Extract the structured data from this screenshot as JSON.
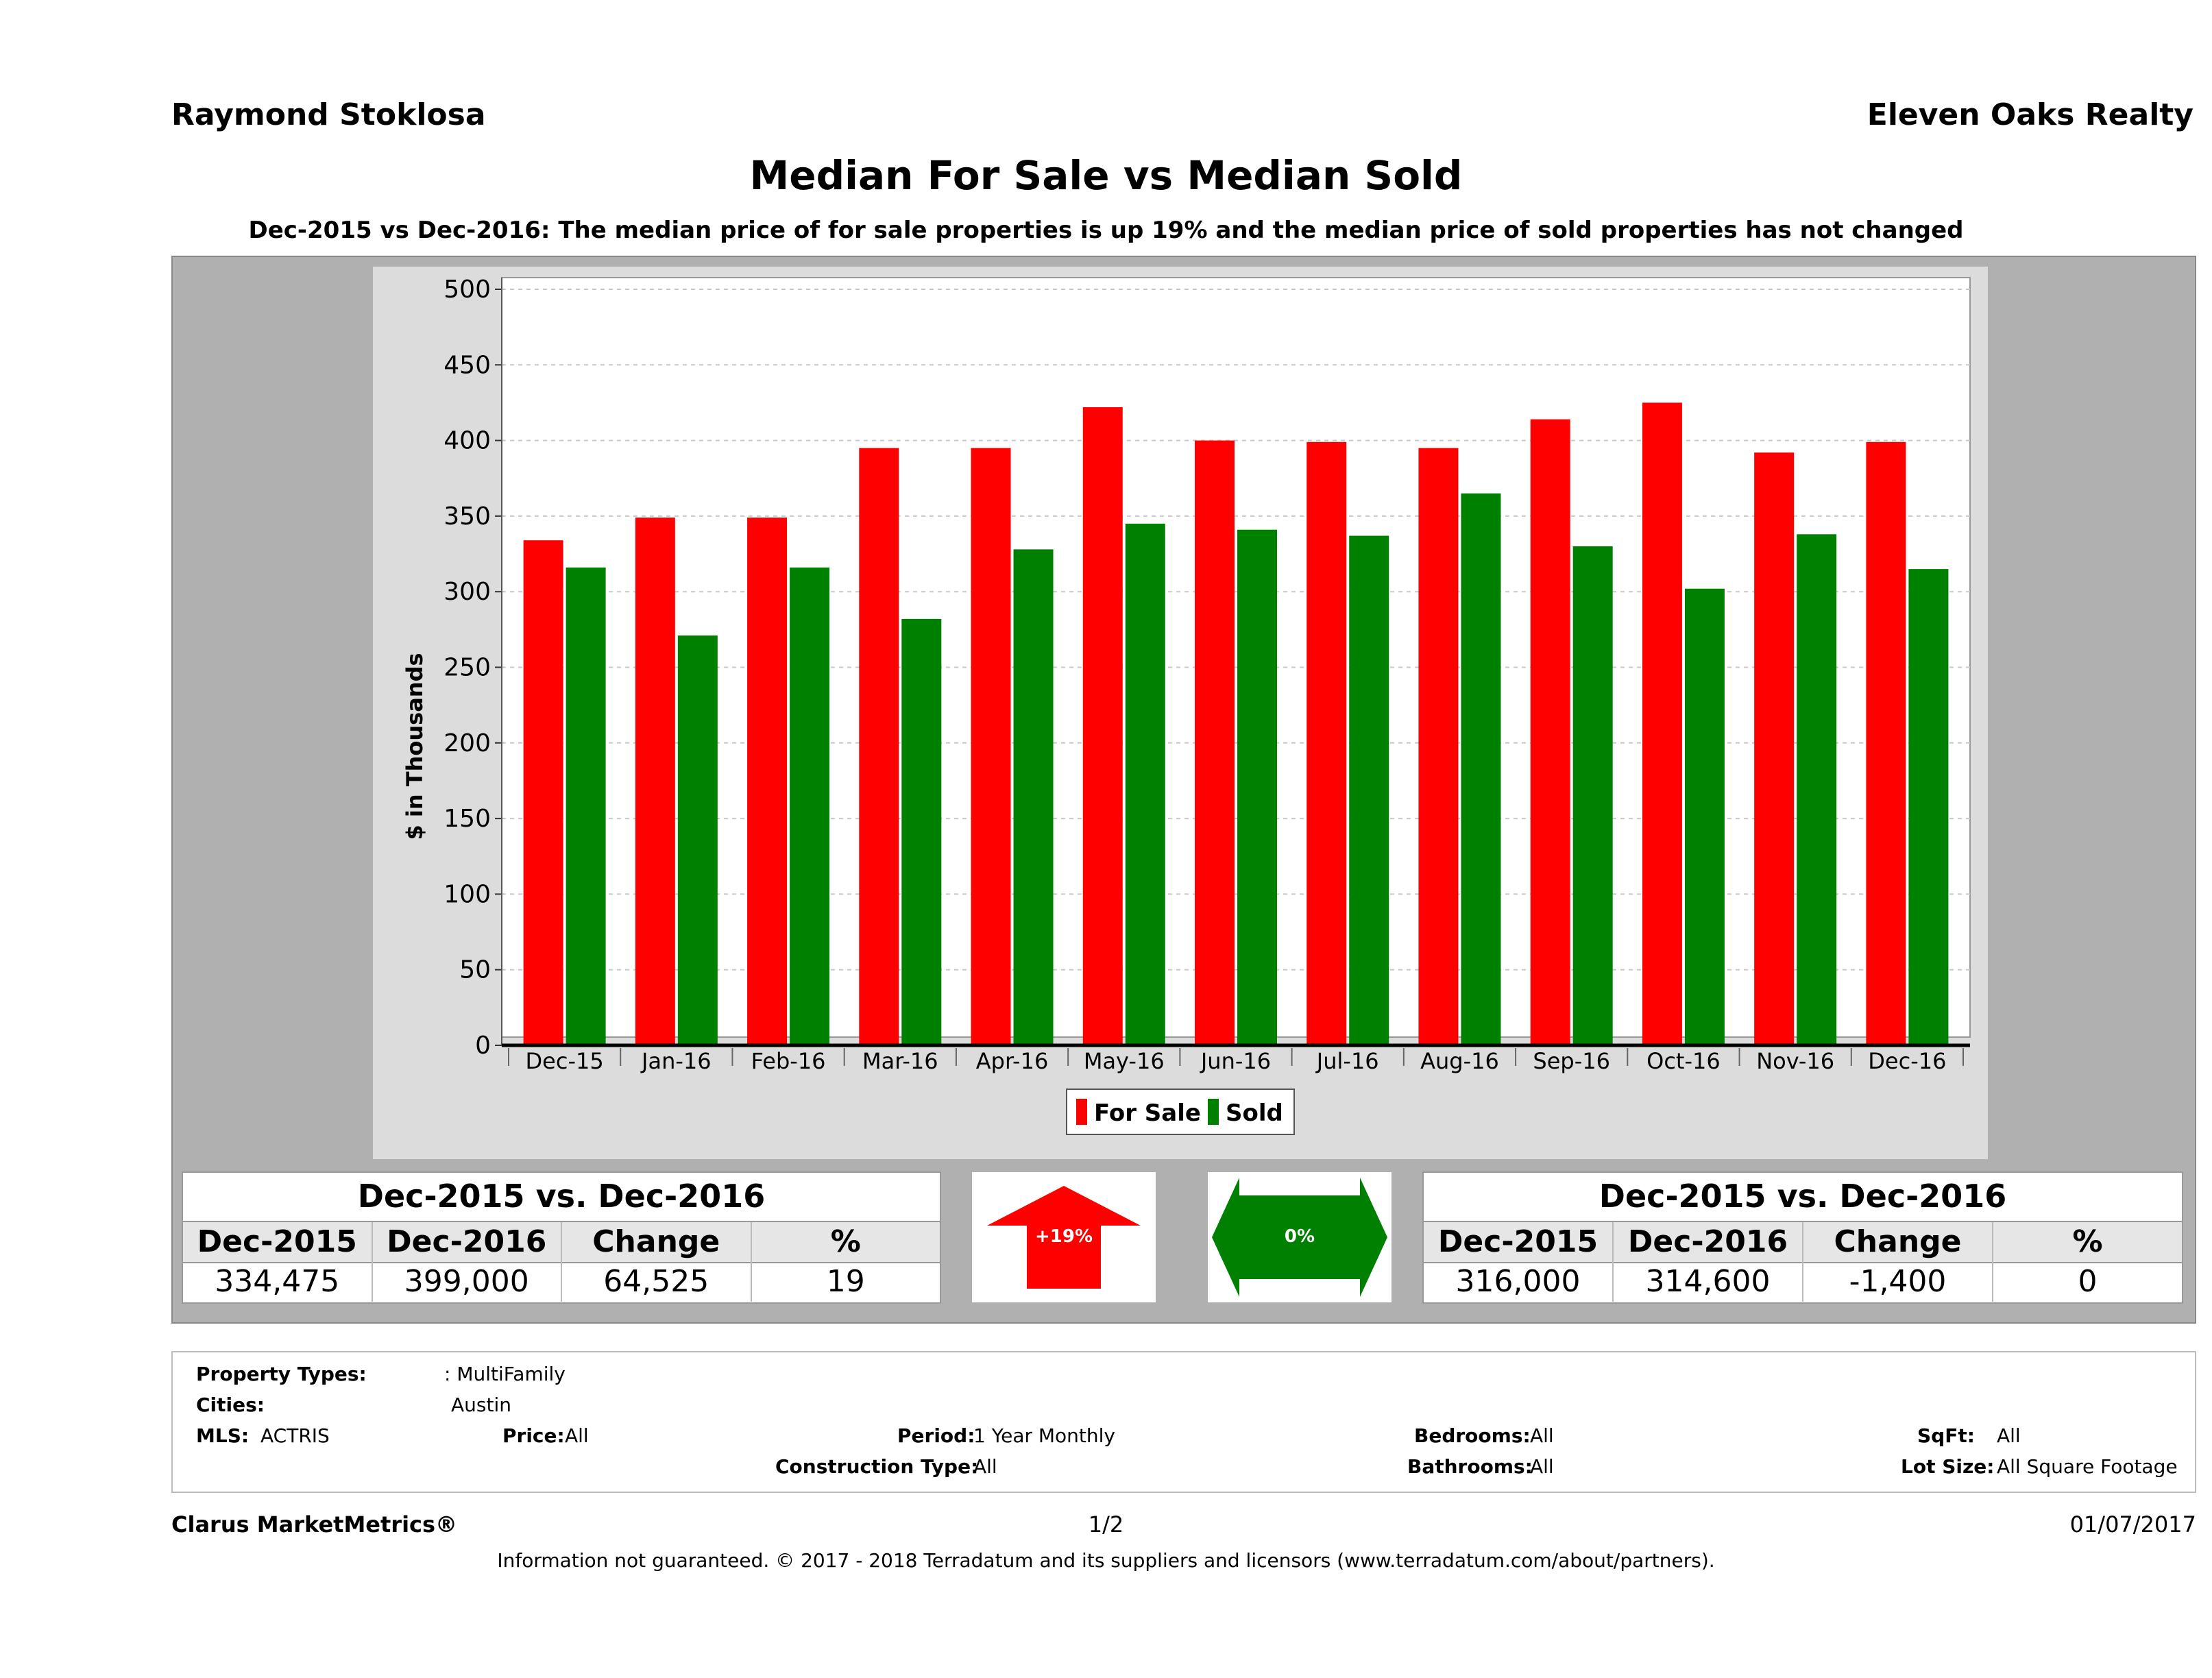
{
  "header": {
    "agent_name": "Raymond Stoklosa",
    "company": "Eleven Oaks Realty",
    "title": "Median For Sale vs Median Sold",
    "subtitle": "Dec-2015 vs Dec-2016: The median price of for sale properties is up 19% and the median price of sold properties has not changed"
  },
  "colors": {
    "for_sale": "#ff0000",
    "sold": "#008000",
    "panel": "#b0b0b0"
  },
  "chart_data": {
    "type": "bar",
    "categories": [
      "Dec-15",
      "Jan-16",
      "Feb-16",
      "Mar-16",
      "Apr-16",
      "May-16",
      "Jun-16",
      "Jul-16",
      "Aug-16",
      "Sep-16",
      "Oct-16",
      "Nov-16",
      "Dec-16"
    ],
    "series": [
      {
        "name": "For Sale",
        "color": "#ff0000",
        "values": [
          334,
          349,
          349,
          395,
          395,
          422,
          400,
          399,
          395,
          414,
          425,
          392,
          399
        ]
      },
      {
        "name": "Sold",
        "color": "#008000",
        "values": [
          316,
          271,
          316,
          282,
          328,
          345,
          341,
          337,
          365,
          330,
          302,
          338,
          315
        ]
      }
    ],
    "ylabel": "$ in Thousands",
    "xlabel": "",
    "ylim": [
      0,
      500
    ],
    "yticks": [
      "0",
      "50",
      "100",
      "150",
      "200",
      "250",
      "300",
      "350",
      "400",
      "450",
      "500"
    ],
    "ytick_values": [
      0,
      50,
      100,
      150,
      200,
      250,
      300,
      350,
      400,
      450,
      500
    ],
    "grid": true,
    "legend_position": "bottom-center"
  },
  "for_sale_table": {
    "title": "Dec-2015 vs. Dec-2016",
    "headers": [
      "Dec-2015",
      "Dec-2016",
      "Change",
      "%"
    ],
    "values": [
      "334,475",
      "399,000",
      "64,525",
      "19"
    ]
  },
  "sold_table": {
    "title": "Dec-2015 vs. Dec-2016",
    "headers": [
      "Dec-2015",
      "Dec-2016",
      "Change",
      "%"
    ],
    "values": [
      "316,000",
      "314,600",
      "-1,400",
      "0"
    ]
  },
  "indicators": {
    "for_sale_change": "+19%",
    "sold_change": "0%"
  },
  "filters": {
    "property_types_label": "Property Types:",
    "property_types_value": ": MultiFamily",
    "cities_label": "Cities:",
    "cities_value": "Austin",
    "mls_label": "MLS:",
    "mls_value": "ACTRIS",
    "price_label": "Price:",
    "price_value": "All",
    "period_label": "Period:",
    "period_value": "1 Year Monthly",
    "construction_label": "Construction Type:",
    "construction_value": "All",
    "bedrooms_label": "Bedrooms:",
    "bedrooms_value": "All",
    "bathrooms_label": "Bathrooms:",
    "bathrooms_value": "All",
    "sqft_label": "SqFt:",
    "sqft_value": "All",
    "lotsize_label": "Lot Size:",
    "lotsize_value": "All Square Footage"
  },
  "footer": {
    "brand": "Clarus MarketMetrics®",
    "page": "1/2",
    "date": "01/07/2017",
    "disclaimer": "Information not guaranteed. © 2017 - 2018 Terradatum and its suppliers and licensors (www.terradatum.com/about/partners)."
  }
}
